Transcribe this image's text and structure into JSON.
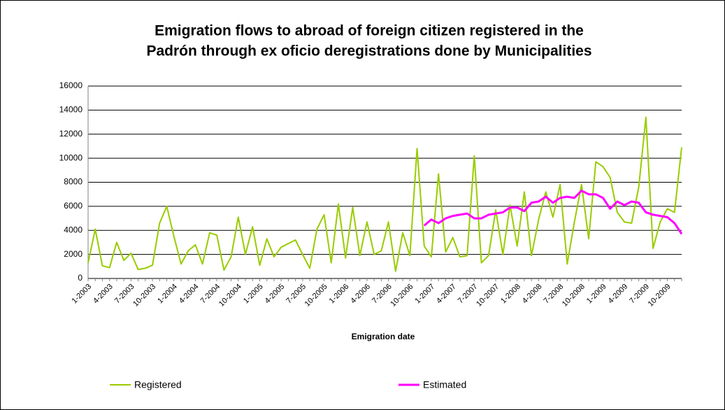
{
  "chart_data": {
    "type": "line",
    "title": [
      "Emigration flows to abroad of foreign citizen registered in the",
      "Padrón through ex oficio deregistrations done by Municipalities"
    ],
    "x_label": "Emigration date",
    "categories": [
      "1-2003",
      null,
      null,
      "4-2003",
      null,
      null,
      "7-2003",
      null,
      null,
      "10-2003",
      null,
      null,
      "1-2004",
      null,
      null,
      "4-2004",
      null,
      null,
      "7-2004",
      null,
      null,
      "10-2004",
      null,
      null,
      "1-2005",
      null,
      null,
      "4-2005",
      null,
      null,
      "7-2005",
      null,
      null,
      "10-2005",
      null,
      null,
      "1-2006",
      null,
      null,
      "4-2006",
      null,
      null,
      "7-2006",
      null,
      null,
      "10-2006",
      null,
      null,
      "1-2007",
      null,
      null,
      "4-2007",
      null,
      null,
      "7-2007",
      null,
      null,
      "10-2007",
      null,
      null,
      "1-2008",
      null,
      null,
      "4-2008",
      null,
      null,
      "7-2008",
      null,
      null,
      "10-2008",
      null,
      null,
      "1-2009",
      null,
      null,
      "4-2009",
      null,
      null,
      "7-2009",
      null,
      null,
      "10-2009",
      null,
      null
    ],
    "series": [
      {
        "name": "Registered",
        "color": "#99cc00",
        "values": [
          1300,
          4100,
          1050,
          900,
          3000,
          1500,
          2100,
          750,
          850,
          1100,
          4600,
          6000,
          3500,
          1200,
          2300,
          2800,
          1200,
          3800,
          3600,
          700,
          1800,
          5100,
          2000,
          4300,
          1100,
          3300,
          1800,
          2600,
          2900,
          3200,
          2000,
          850,
          4100,
          5300,
          1300,
          6200,
          1700,
          5900,
          1900,
          4700,
          2000,
          2300,
          4700,
          600,
          3800,
          1900,
          10800,
          2700,
          1800,
          8700,
          2200,
          3400,
          1800,
          1900,
          10200,
          1300,
          1900,
          5700,
          2000,
          6100,
          2700,
          7200,
          1900,
          4900,
          7200,
          5100,
          7800,
          1200,
          4700,
          7800,
          3300,
          9700,
          9300,
          8400,
          5500,
          4700,
          4600,
          7600,
          13400,
          2500,
          4700,
          5800,
          5500,
          10900
        ]
      },
      {
        "name": "Estimated",
        "color": "#ff00ff",
        "values": [
          null,
          null,
          null,
          null,
          null,
          null,
          null,
          null,
          null,
          null,
          null,
          null,
          null,
          null,
          null,
          null,
          null,
          null,
          null,
          null,
          null,
          null,
          null,
          null,
          null,
          null,
          null,
          null,
          null,
          null,
          null,
          null,
          null,
          null,
          null,
          null,
          null,
          null,
          null,
          null,
          null,
          null,
          null,
          null,
          null,
          null,
          null,
          4400,
          4900,
          4600,
          5000,
          5200,
          5300,
          5400,
          5000,
          5000,
          5300,
          5400,
          5500,
          5900,
          5900,
          5600,
          6300,
          6400,
          6800,
          6300,
          6700,
          6800,
          6700,
          7300,
          7000,
          7000,
          6700,
          5800,
          6400,
          6100,
          6400,
          6300,
          5500,
          5300,
          5200,
          5100,
          4600,
          3700
        ]
      }
    ],
    "ylim": [
      0,
      16000
    ],
    "yticks": [
      0,
      2000,
      4000,
      6000,
      8000,
      10000,
      12000,
      14000,
      16000
    ],
    "grid": true
  }
}
